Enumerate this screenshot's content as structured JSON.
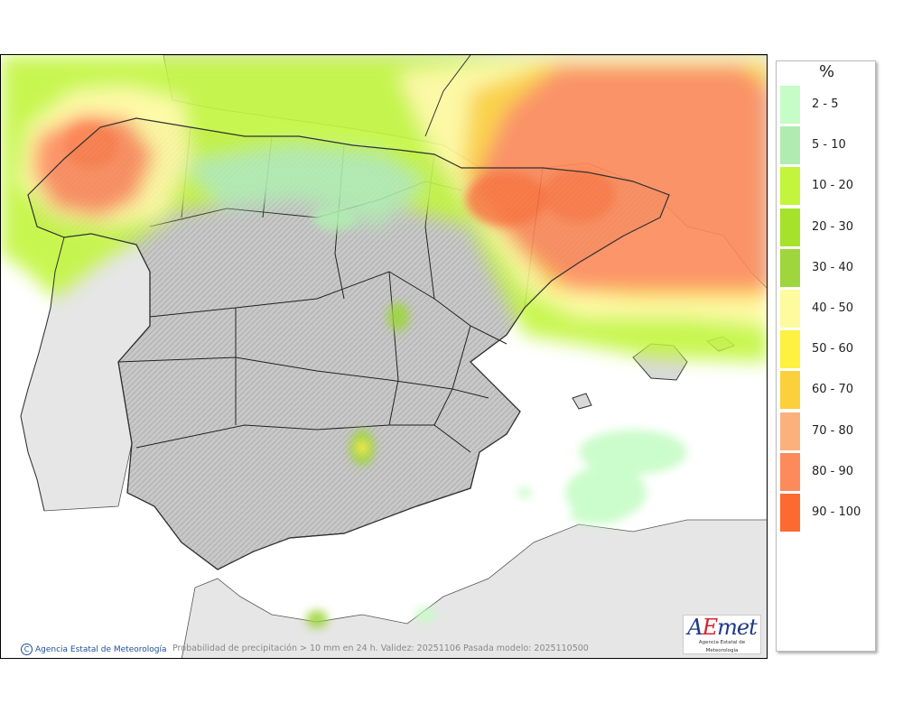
{
  "map": {
    "caption": "Probabilidad de precipitación > 10 mm en 24 h. Validez: 20251106 Pasada modelo: 2025110500",
    "credit": "Agencia Estatal de Meteorología",
    "copyright_symbol": "C"
  },
  "logo": {
    "wordmark_a": "A",
    "wordmark_e": "E",
    "wordmark_rest": "met",
    "subtitle": "Agencia Estatal de Meteorología"
  },
  "legend": {
    "title": "%",
    "items": [
      {
        "label": "2 - 5",
        "color": "#c6fcc6"
      },
      {
        "label": "5 - 10",
        "color": "#b0ecb0"
      },
      {
        "label": "10 - 20",
        "color": "#c2f53c"
      },
      {
        "label": "20 - 30",
        "color": "#a6e22a"
      },
      {
        "label": "30 - 40",
        "color": "#9ed63c"
      },
      {
        "label": "40 - 50",
        "color": "#fefa9e"
      },
      {
        "label": "50 - 60",
        "color": "#fef140"
      },
      {
        "label": "60 - 70",
        "color": "#fcd03a"
      },
      {
        "label": "70 - 80",
        "color": "#fcb07c"
      },
      {
        "label": "80 - 90",
        "color": "#fc8a5a"
      },
      {
        "label": "90 - 100",
        "color": "#fc6a32"
      }
    ]
  }
}
